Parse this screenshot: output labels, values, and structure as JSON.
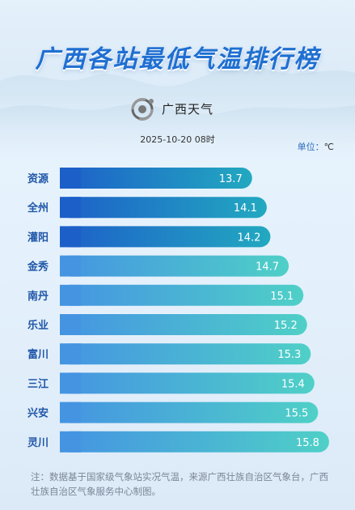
{
  "title": "广西各站最低气温排行榜",
  "logo": {
    "name": "广西天气",
    "icon": "guangxi-weather-logo-icon"
  },
  "datetime": "2025-10-20 08时",
  "unit": {
    "label": "单位：",
    "value": "℃"
  },
  "colors": {
    "title": "#1f6fd2",
    "top3_bar_start": "#1d5fc9",
    "top3_bar_end": "#22a9c0",
    "bar_start": "#4594e2",
    "bar_end": "#4fd0c7",
    "label": "#1f56a8"
  },
  "chart_data": {
    "type": "bar",
    "orientation": "horizontal",
    "categories": [
      "资源",
      "全州",
      "灌阳",
      "金秀",
      "南丹",
      "乐业",
      "富川",
      "三江",
      "兴安",
      "灵川"
    ],
    "values": [
      13.7,
      14.1,
      14.2,
      14.7,
      15.1,
      15.2,
      15.3,
      15.4,
      15.5,
      15.8
    ],
    "highlight_top": 3,
    "unit": "℃"
  },
  "note": "注：数据基于国家级气象站实况气温，来源广西壮族自治区气象台，广西壮族自治区气象服务中心制图。"
}
